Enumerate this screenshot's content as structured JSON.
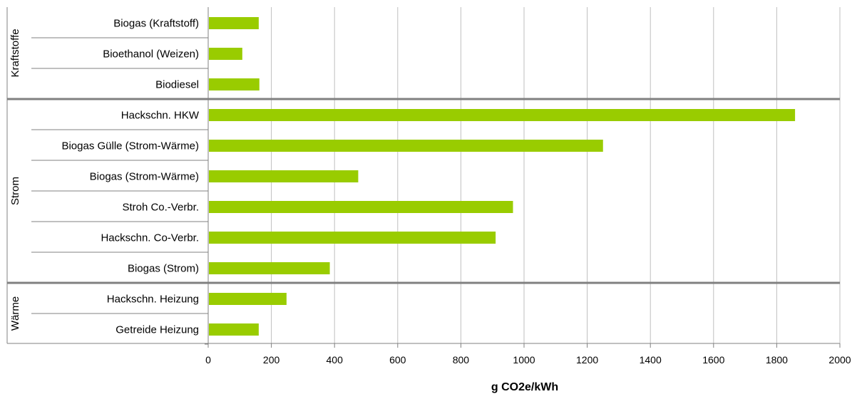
{
  "chart_data": {
    "type": "bar",
    "orientation": "horizontal",
    "xlabel": "g CO2e/kWh",
    "xlim": [
      0,
      2000
    ],
    "x_ticks": [
      0,
      200,
      400,
      600,
      800,
      1000,
      1200,
      1400,
      1600,
      1800,
      2000
    ],
    "grid": true,
    "bar_color": "#99cc00",
    "groups": [
      {
        "name": "Kraftstoffe",
        "categories": [
          "Biogas (Kraftstoff)",
          "Bioethanol (Weizen)",
          "Biodiesel"
        ],
        "values": [
          160,
          108,
          162
        ]
      },
      {
        "name": "Strom",
        "categories": [
          "Hackschn. HKW",
          "Biogas Gülle (Strom-Wärme)",
          "Biogas (Strom-Wärme)",
          "Stroh Co.-Verbr.",
          "Hackschn. Co-Verbr.",
          "Biogas (Strom)"
        ],
        "values": [
          1858,
          1250,
          475,
          965,
          910,
          385
        ]
      },
      {
        "name": "Wärme",
        "categories": [
          "Hackschn. Heizung",
          "Getreide Heizung"
        ],
        "values": [
          248,
          160
        ]
      }
    ]
  }
}
